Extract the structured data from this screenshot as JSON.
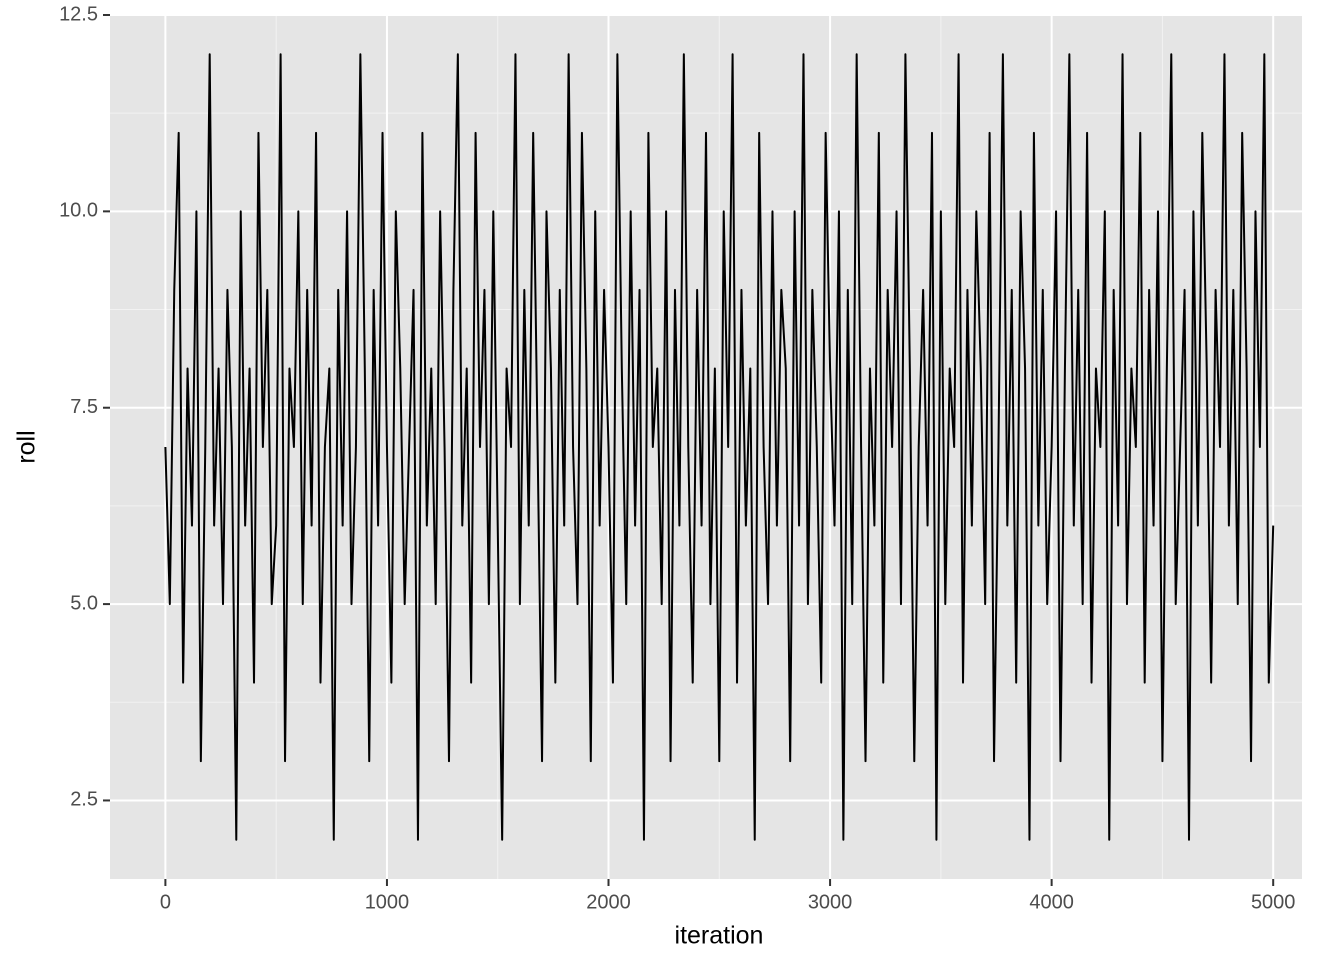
{
  "chart_data": {
    "type": "line",
    "x_label": "iteration",
    "y_label": "roll",
    "x": [
      0,
      20,
      40,
      60,
      80,
      100,
      120,
      140,
      160,
      180,
      200,
      220,
      240,
      260,
      280,
      300,
      320,
      340,
      360,
      380,
      400,
      420,
      440,
      460,
      480,
      500,
      520,
      540,
      560,
      580,
      600,
      620,
      640,
      660,
      680,
      700,
      720,
      740,
      760,
      780,
      800,
      820,
      840,
      860,
      880,
      900,
      920,
      940,
      960,
      980,
      1000,
      1020,
      1040,
      1060,
      1080,
      1100,
      1120,
      1140,
      1160,
      1180,
      1200,
      1220,
      1240,
      1260,
      1280,
      1300,
      1320,
      1340,
      1360,
      1380,
      1400,
      1420,
      1440,
      1460,
      1480,
      1500,
      1520,
      1540,
      1560,
      1580,
      1600,
      1620,
      1640,
      1660,
      1680,
      1700,
      1720,
      1740,
      1760,
      1780,
      1800,
      1820,
      1840,
      1860,
      1880,
      1900,
      1920,
      1940,
      1960,
      1980,
      2000,
      2020,
      2040,
      2060,
      2080,
      2100,
      2120,
      2140,
      2160,
      2180,
      2200,
      2220,
      2240,
      2260,
      2280,
      2300,
      2320,
      2340,
      2360,
      2380,
      2400,
      2420,
      2440,
      2460,
      2480,
      2500,
      2520,
      2540,
      2560,
      2580,
      2600,
      2620,
      2640,
      2660,
      2680,
      2700,
      2720,
      2740,
      2760,
      2780,
      2800,
      2820,
      2840,
      2860,
      2880,
      2900,
      2920,
      2940,
      2960,
      2980,
      3000,
      3020,
      3040,
      3060,
      3080,
      3100,
      3120,
      3140,
      3160,
      3180,
      3200,
      3220,
      3240,
      3260,
      3280,
      3300,
      3320,
      3340,
      3360,
      3380,
      3400,
      3420,
      3440,
      3460,
      3480,
      3500,
      3520,
      3540,
      3560,
      3580,
      3600,
      3620,
      3640,
      3660,
      3680,
      3700,
      3720,
      3740,
      3760,
      3780,
      3800,
      3820,
      3840,
      3860,
      3880,
      3900,
      3920,
      3940,
      3960,
      3980,
      4000,
      4020,
      4040,
      4060,
      4080,
      4100,
      4120,
      4140,
      4160,
      4180,
      4200,
      4220,
      4240,
      4260,
      4280,
      4300,
      4320,
      4340,
      4360,
      4380,
      4400,
      4420,
      4440,
      4460,
      4480,
      4500,
      4520,
      4540,
      4560,
      4580,
      4600,
      4620,
      4640,
      4660,
      4680,
      4700,
      4720,
      4740,
      4760,
      4780,
      4800,
      4820,
      4840,
      4860,
      4880,
      4900,
      4920,
      4940,
      4960,
      4980,
      5000
    ],
    "values": [
      7,
      5,
      9,
      11,
      4,
      8,
      6,
      10,
      3,
      7,
      12,
      6,
      8,
      5,
      9,
      7,
      2,
      10,
      6,
      8,
      4,
      11,
      7,
      9,
      5,
      6,
      12,
      3,
      8,
      7,
      10,
      5,
      9,
      6,
      11,
      4,
      7,
      8,
      2,
      9,
      6,
      10,
      5,
      7,
      12,
      8,
      3,
      9,
      6,
      11,
      7,
      4,
      10,
      8,
      5,
      7,
      9,
      2,
      11,
      6,
      8,
      5,
      10,
      7,
      3,
      9,
      12,
      6,
      8,
      4,
      11,
      7,
      9,
      5,
      10,
      6,
      2,
      8,
      7,
      12,
      5,
      9,
      6,
      11,
      7,
      3,
      10,
      8,
      4,
      9,
      6,
      12,
      7,
      5,
      11,
      8,
      3,
      10,
      6,
      9,
      7,
      4,
      12,
      8,
      5,
      10,
      6,
      9,
      2,
      11,
      7,
      8,
      5,
      10,
      3,
      9,
      6,
      12,
      7,
      4,
      9,
      6,
      11,
      5,
      8,
      3,
      10,
      7,
      12,
      4,
      9,
      6,
      8,
      2,
      11,
      7,
      5,
      10,
      6,
      9,
      8,
      3,
      10,
      6,
      12,
      5,
      9,
      7,
      4,
      11,
      8,
      6,
      10,
      2,
      9,
      5,
      12,
      7,
      3,
      8,
      6,
      11,
      4,
      9,
      7,
      10,
      5,
      12,
      8,
      3,
      7,
      9,
      6,
      11,
      2,
      10,
      5,
      8,
      7,
      12,
      4,
      9,
      6,
      10,
      8,
      5,
      11,
      3,
      7,
      12,
      6,
      9,
      4,
      10,
      8,
      2,
      11,
      6,
      9,
      5,
      7,
      10,
      3,
      8,
      12,
      6,
      9,
      5,
      11,
      4,
      8,
      7,
      10,
      2,
      9,
      6,
      12,
      5,
      8,
      7,
      11,
      4,
      9,
      6,
      10,
      3,
      8,
      12,
      5,
      7,
      9,
      2,
      10,
      6,
      11,
      8,
      4,
      9,
      7,
      12,
      6,
      9,
      5,
      11,
      8,
      3,
      10,
      7,
      12,
      4,
      6
    ],
    "color": "#000000",
    "xlim": [
      -250,
      5130
    ],
    "ylim": [
      1.5,
      12.5
    ],
    "xticks": [
      0,
      1000,
      2000,
      3000,
      4000,
      5000
    ],
    "yticks": [
      2.5,
      {
        "value": 5,
        "label": "5.0"
      },
      7.5,
      {
        "value": 10,
        "label": "10.0"
      },
      12.5
    ],
    "minor_xticks": [
      500,
      1500,
      2500,
      3500,
      4500
    ],
    "minor_yticks": [
      3.75,
      6.25,
      8.75,
      11.25
    ],
    "grid": true
  }
}
